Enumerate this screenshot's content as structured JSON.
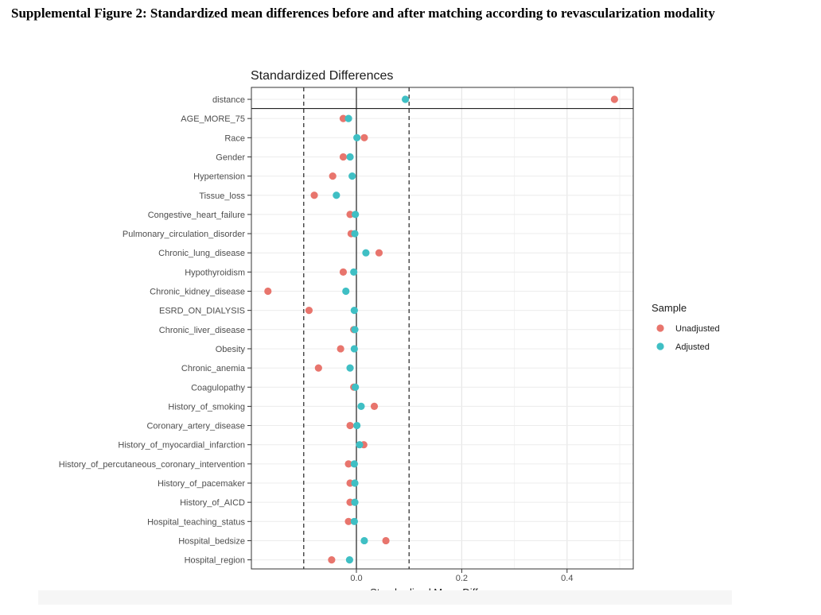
{
  "caption": "Supplemental Figure 2: Standardized mean differences before and after matching according to revascularization modality",
  "chart_data": {
    "type": "scatter",
    "title": "Standardized Differences",
    "xlabel": "Standardized Mean Differences",
    "ylabel": "",
    "xlim": [
      -0.2,
      0.52
    ],
    "xticks": [
      0.0,
      0.2,
      0.4
    ],
    "xtick_labels": [
      "0.0",
      "0.2",
      "0.4"
    ],
    "reference_lines": {
      "solid": [
        0.0
      ],
      "dashed": [
        -0.1,
        0.1
      ]
    },
    "separator_after_category": "distance",
    "grid": true,
    "legend": {
      "title": "Sample",
      "position": "right",
      "entries": [
        {
          "name": "Unadjusted",
          "color": "#E8756D"
        },
        {
          "name": "Adjusted",
          "color": "#3FBFC4"
        }
      ]
    },
    "categories": [
      "distance",
      "AGE_MORE_75",
      "Race",
      "Gender",
      "Hypertension",
      "Tissue_loss",
      "Congestive_heart_failure",
      "Pulmonary_circulation_disorder",
      "Chronic_lung_disease",
      "Hypothyroidism",
      "Chronic_kidney_disease",
      "ESRD_ON_DIALYSIS",
      "Chronic_liver_disease",
      "Obesity",
      "Chronic_anemia",
      "Coagulopathy",
      "History_of_smoking",
      "Coronary_artery_disease",
      "History_of_myocardial_infarction",
      "History_of_percutaneous_coronary_intervention",
      "History_of_pacemaker",
      "History_of_AICD",
      "Hospital_teaching_status",
      "Hospital_bedsize",
      "Hospital_region"
    ],
    "series": [
      {
        "name": "Unadjusted",
        "values": [
          0.49,
          -0.025,
          0.015,
          -0.025,
          -0.045,
          -0.08,
          -0.012,
          -0.01,
          0.043,
          -0.025,
          -0.168,
          -0.09,
          -0.005,
          -0.03,
          -0.072,
          -0.005,
          0.034,
          -0.012,
          0.014,
          -0.015,
          -0.012,
          -0.012,
          -0.015,
          0.056,
          -0.047
        ]
      },
      {
        "name": "Adjusted",
        "values": [
          0.093,
          -0.015,
          0.001,
          -0.012,
          -0.008,
          -0.038,
          -0.002,
          -0.003,
          0.018,
          -0.005,
          -0.02,
          -0.004,
          -0.003,
          -0.004,
          -0.012,
          -0.002,
          0.009,
          0.001,
          0.006,
          -0.004,
          -0.003,
          -0.003,
          -0.004,
          0.015,
          -0.013
        ]
      }
    ]
  }
}
